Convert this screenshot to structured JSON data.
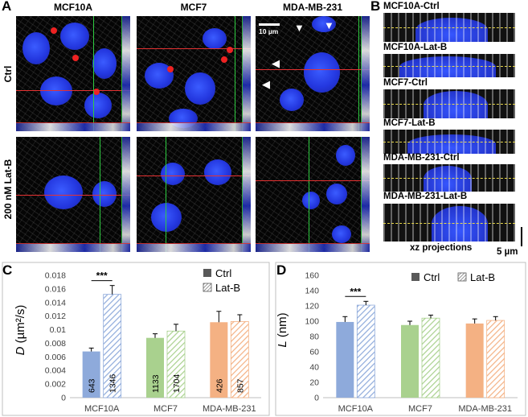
{
  "panel_letters": {
    "a": "A",
    "b": "B",
    "c": "C",
    "d": "D"
  },
  "panel_a": {
    "columns": [
      "MCF10A",
      "MCF7",
      "MDA-MB-231"
    ],
    "rows": [
      "Ctrl",
      "200 nM Lat-B"
    ],
    "scale_bar": "10 µm"
  },
  "panel_b": {
    "strips": [
      "MCF10A-Ctrl",
      "MCF10A-Lat-B",
      "MCF7-Ctrl",
      "MCF7-Lat-B",
      "MDA-MB-231-Ctrl",
      "MDA-MB-231-Lat-B"
    ],
    "caption": "xz projections",
    "scale_bar": "5 µm"
  },
  "colors": {
    "mcf10a": "#8eaadb",
    "mcf7": "#a9d18e",
    "mda": "#f4b183",
    "ctrl_legend": "#595959"
  },
  "chart_data": [
    {
      "type": "bar",
      "ylabel_var": "D",
      "ylabel_unit": " (µm²/s)",
      "categories": [
        "MCF10A",
        "MCF7",
        "MDA-MB-231"
      ],
      "yticks": [
        "0",
        "0.002",
        "0.004",
        "0.006",
        "0.008",
        "0.01",
        "0.012",
        "0.014",
        "0.016",
        "0.018"
      ],
      "ylim": [
        0,
        0.018
      ],
      "legend": [
        "Ctrl",
        "Lat-B"
      ],
      "significance": "***",
      "series": [
        {
          "name": "Ctrl",
          "values": [
            0.0068,
            0.0088,
            0.0111
          ],
          "errors": [
            0.0005,
            0.0006,
            0.0016
          ],
          "labels": [
            "643",
            "1133",
            "426"
          ]
        },
        {
          "name": "Lat-B",
          "values": [
            0.0152,
            0.0098,
            0.0112
          ],
          "errors": [
            0.0013,
            0.001,
            0.001
          ],
          "labels": [
            "1346",
            "1704",
            "857"
          ]
        }
      ]
    },
    {
      "type": "bar",
      "ylabel_var": "L",
      "ylabel_unit": " (nm)",
      "categories": [
        "MCF10A",
        "MCF7",
        "MDA-MB-231"
      ],
      "yticks": [
        "0",
        "20",
        "40",
        "60",
        "80",
        "100",
        "120",
        "140",
        "160"
      ],
      "ylim": [
        0,
        160
      ],
      "legend": [
        "Ctrl",
        "Lat-B"
      ],
      "significance": "***",
      "series": [
        {
          "name": "Ctrl",
          "values": [
            99,
            95,
            97
          ],
          "errors": [
            7,
            5,
            6
          ]
        },
        {
          "name": "Lat-B",
          "values": [
            121,
            104,
            101
          ],
          "errors": [
            5,
            4,
            5
          ]
        }
      ]
    }
  ]
}
